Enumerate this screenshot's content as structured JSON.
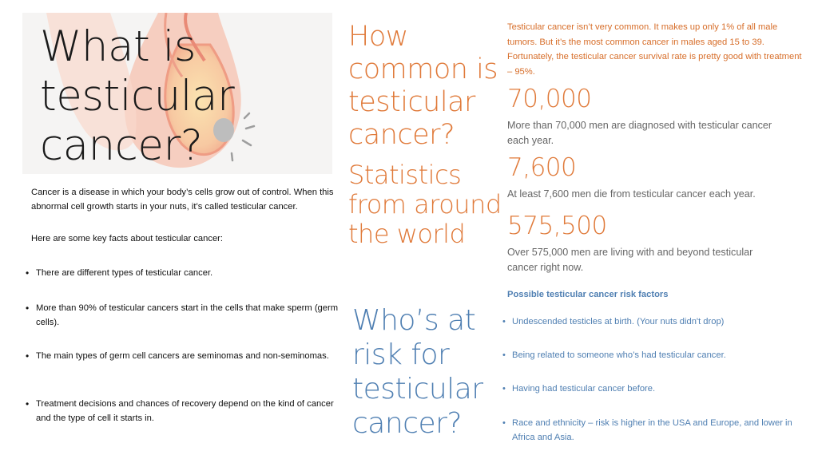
{
  "hero": {
    "title": "What is\ntesticular\ncancer?",
    "illustration": "anatomical-illustration"
  },
  "intro": {
    "paragraph": "Cancer is a disease in which your body’s cells grow out of control. When this abnormal cell growth starts in your nuts, it’s called testicular cancer.",
    "lead": "Here are some key facts about testicular cancer:"
  },
  "facts": [
    "There are different types of testicular cancer.",
    "More than 90% of testicular cancers start in the cells that make sperm (germ cells).",
    "The main types of germ cell cancers are seminomas and non-seminomas.",
    "Treatment decisions and chances of recovery depend on the kind of cancer and the type of cell it starts in."
  ],
  "how_common": {
    "heading": "How\ncommon is\ntesticular\ncancer?",
    "paragraph": "Testicular cancer isn’t very common. It makes up only 1% of all male tumors. But it’s the most common cancer in males aged 15 to 39. Fortunately, the testicular cancer survival rate is pretty good with treatment – 95%."
  },
  "statistics": {
    "heading": "Statistics\nfrom around\nthe world",
    "items": [
      {
        "number": "70,000",
        "description": "More than 70,000 men are diagnosed with testicular cancer each year."
      },
      {
        "number": "7,600",
        "description": "At least 7,600 men die from testicular cancer each year."
      },
      {
        "number": "575,500",
        "description": "Over 575,000 men are living with and beyond testicular cancer right now."
      }
    ]
  },
  "risk": {
    "heading": "Who’s at\nrisk for\ntesticular\ncancer?",
    "list_title": "Possible testicular cancer risk factors",
    "factors": [
      "Undescended testicles at birth. (Your nuts didn't drop)",
      "Being related to someone who’s had testicular cancer.",
      "Having had testicular cancer before.",
      "Race and ethnicity – risk is higher in the USA and Europe, and lower in Africa and Asia."
    ]
  },
  "colors": {
    "orange": "#e07a3a",
    "blue": "#4f7fb2",
    "text": "#111111"
  }
}
